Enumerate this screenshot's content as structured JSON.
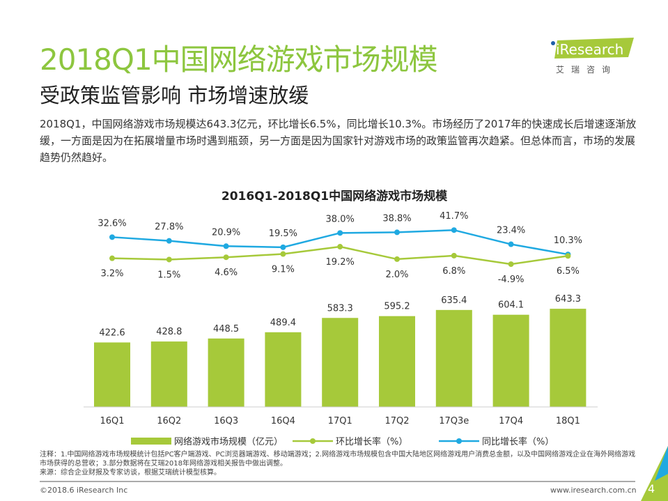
{
  "header": {
    "title": "2018Q1中国网络游戏市场规模",
    "subtitle": "受政策监管影响 市场增速放缓",
    "description": "2018Q1，中国网络游戏市场规模达643.3亿元，环比增长6.5%，同比增长10.3%。市场经历了2017年的快速成长后增速逐渐放缓，一方面是因为在拓展增量市场时遇到瓶颈，另一方面是因为国家针对游戏市场的政策监管再次趋紧。但总体而言，市场的发展趋势仍然趋好。"
  },
  "logo": {
    "text": "iResearch",
    "cn": "艾 瑞 咨 询"
  },
  "chart_data": {
    "type": "bar+line",
    "title": "2016Q1-2018Q1中国网络游戏市场规模",
    "categories": [
      "16Q1",
      "16Q2",
      "16Q3",
      "16Q4",
      "17Q1",
      "17Q2",
      "17Q3e",
      "17Q4",
      "18Q1"
    ],
    "series": [
      {
        "name": "网络游戏市场规模（亿元）",
        "type": "bar",
        "color": "#a6c93a",
        "values": [
          422.6,
          428.8,
          448.5,
          489.4,
          583.3,
          595.2,
          635.4,
          604.1,
          643.3
        ],
        "labels": [
          "422.6",
          "428.8",
          "448.5",
          "489.4",
          "583.3",
          "595.2",
          "635.4",
          "604.1",
          "643.3"
        ]
      },
      {
        "name": "环比增长率（%）",
        "type": "line",
        "color": "#a6c93a",
        "values": [
          3.2,
          1.5,
          4.6,
          9.1,
          19.2,
          2.0,
          6.8,
          -4.9,
          6.5
        ],
        "labels": [
          "3.2%",
          "1.5%",
          "4.6%",
          "9.1%",
          "19.2%",
          "2.0%",
          "6.8%",
          "-4.9%",
          "6.5%"
        ]
      },
      {
        "name": "同比增长率（%）",
        "type": "line",
        "color": "#1fa9e1",
        "values": [
          32.6,
          27.8,
          20.9,
          19.5,
          38.0,
          38.8,
          41.7,
          23.4,
          10.3
        ],
        "labels": [
          "32.6%",
          "27.8%",
          "20.9%",
          "19.5%",
          "38.0%",
          "38.8%",
          "41.7%",
          "23.4%",
          "10.3%"
        ]
      }
    ],
    "legend": "bottom",
    "grid": false
  },
  "notes": {
    "line1": "注释：1.中国网络游戏市场规模统计包括PC客户端游戏、PC浏览器端游戏、移动端游戏；2.网络游戏市场规模包含中国大陆地区网络游戏用户消费总金额，以及中国网络游戏企业在海外网络游戏市场获得的总营收；3.部分数据将在艾瑞2018年网络游戏相关报告中做出调整。",
    "source": "来源：综合企业财报及专家访谈，根据艾瑞统计模型核算。"
  },
  "footer": {
    "copyright": "©2018.6 iResearch Inc",
    "website": "www.iresearch.com.cn",
    "page": "4"
  }
}
